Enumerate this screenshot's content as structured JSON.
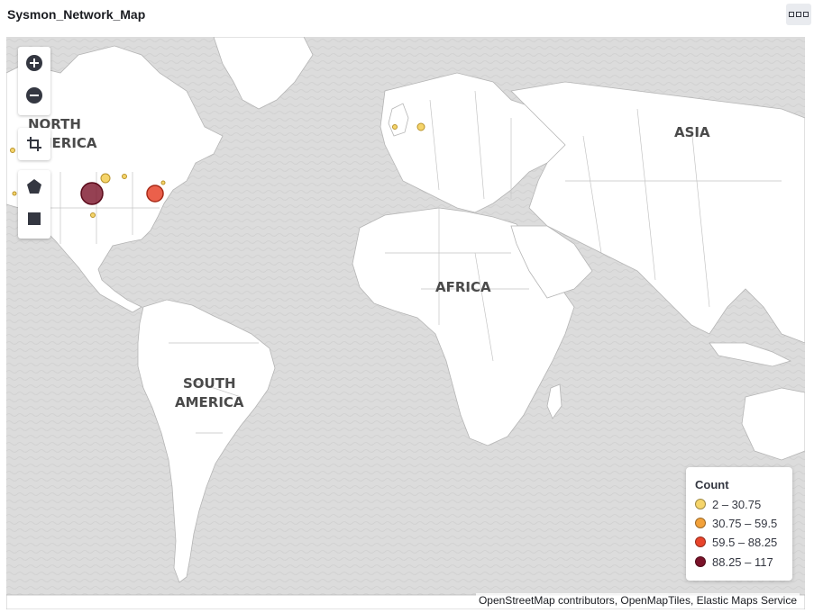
{
  "panel": {
    "title": "Sysmon_Network_Map",
    "menu_icon": "options-icon"
  },
  "map": {
    "continent_labels": {
      "north_america_line1": "NORTH",
      "north_america_line2": "AMERICA",
      "south_america_line1": "SOUTH",
      "south_america_line2": "AMERICA",
      "africa": "AFRICA",
      "asia": "ASIA"
    },
    "controls": {
      "zoom_in": "plus-circle-icon",
      "zoom_out": "minus-circle-icon",
      "fit_bounds": "crop-icon",
      "draw_polygon": "pentagon-icon",
      "draw_rectangle": "square-icon"
    },
    "colors": {
      "ocean": "#dcdcdc",
      "land": "#ffffff",
      "border": "#b8b8b8"
    },
    "attribution": "OpenStreetMap contributors, OpenMapTiles, Elastic Maps Service"
  },
  "legend": {
    "title": "Count",
    "items": [
      {
        "label": "2 – 30.75",
        "color": "#f5d46a"
      },
      {
        "label": "30.75 – 59.5",
        "color": "#f2a13a"
      },
      {
        "label": "59.5 – 88.25",
        "color": "#e8442b"
      },
      {
        "label": "88.25 – 117",
        "color": "#7a1228"
      }
    ]
  },
  "points": [
    {
      "count": 117,
      "color": "#7a1228"
    },
    {
      "count": 70,
      "color": "#e8442b"
    },
    {
      "count": 12,
      "color": "#f5d46a"
    },
    {
      "count": 5,
      "color": "#f5d46a"
    },
    {
      "count": 3,
      "color": "#f5d46a"
    },
    {
      "count": 3,
      "color": "#f5d46a"
    },
    {
      "count": 2,
      "color": "#f5d46a"
    },
    {
      "count": 2,
      "color": "#f5d46a"
    },
    {
      "count": 2,
      "color": "#f5d46a"
    },
    {
      "count": 2,
      "color": "#f5d46a"
    }
  ]
}
